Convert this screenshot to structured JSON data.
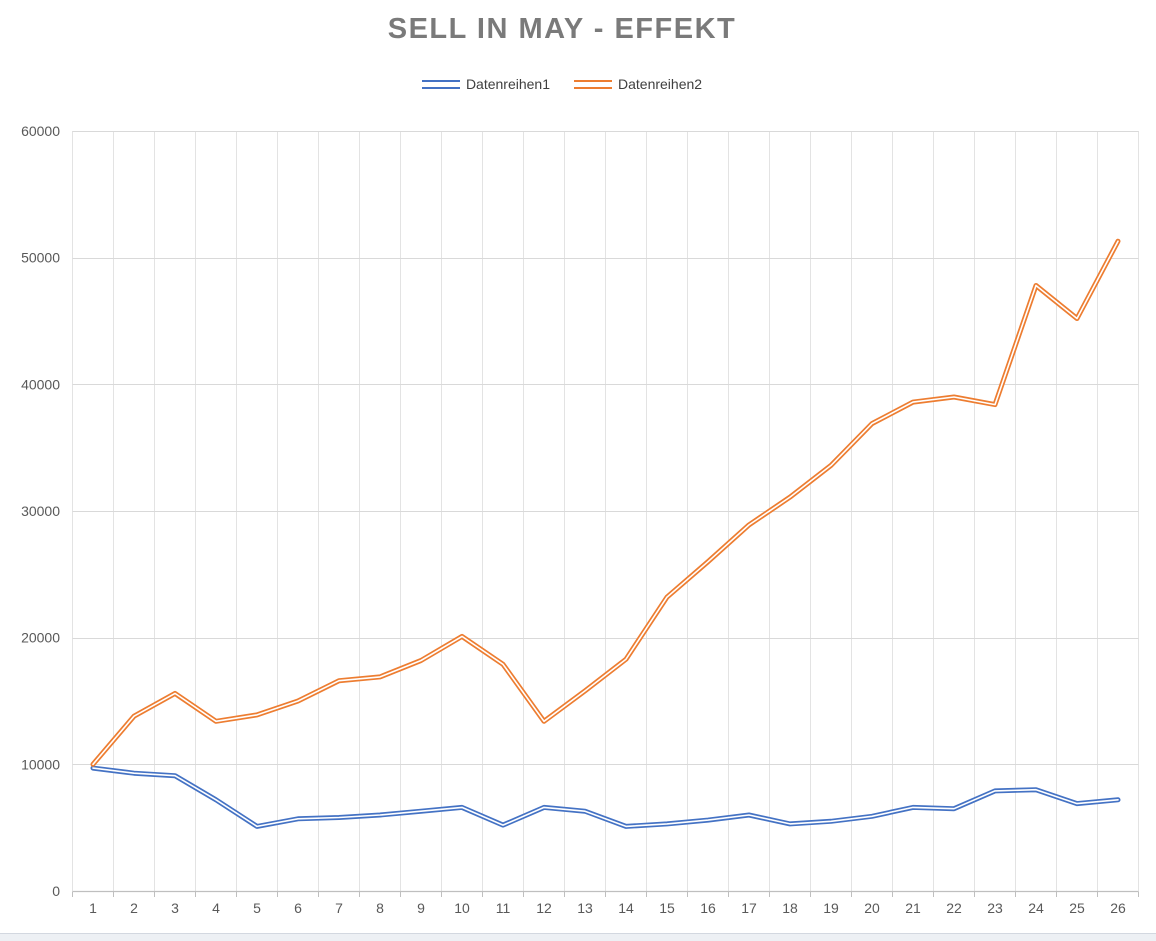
{
  "title": "SELL IN MAY - EFFEKT",
  "legend": [
    {
      "label": "Datenreihen1",
      "color": "#4472C4"
    },
    {
      "label": "Datenreihen2",
      "color": "#ED7D31"
    }
  ],
  "axis": {
    "ytick_labels": [
      "0",
      "10000",
      "20000",
      "30000",
      "40000",
      "50000",
      "60000"
    ],
    "xtick_labels": [
      "1",
      "2",
      "3",
      "4",
      "5",
      "6",
      "7",
      "8",
      "9",
      "10",
      "11",
      "12",
      "13",
      "14",
      "15",
      "16",
      "17",
      "18",
      "19",
      "20",
      "21",
      "22",
      "23",
      "24",
      "25",
      "26"
    ]
  },
  "chart_data": {
    "type": "line",
    "title": "SELL IN MAY - EFFEKT",
    "xlabel": "",
    "ylabel": "",
    "categories": [
      1,
      2,
      3,
      4,
      5,
      6,
      7,
      8,
      9,
      10,
      11,
      12,
      13,
      14,
      15,
      16,
      17,
      18,
      19,
      20,
      21,
      22,
      23,
      24,
      25,
      26
    ],
    "series": [
      {
        "name": "Datenreihen1",
        "color": "#4472C4",
        "values": [
          9700,
          9300,
          9100,
          7200,
          5100,
          5700,
          5800,
          6000,
          6300,
          6600,
          5200,
          6600,
          6300,
          5100,
          5300,
          5600,
          6000,
          5300,
          5500,
          5900,
          6600,
          6500,
          7900,
          8000,
          6900,
          7200
        ]
      },
      {
        "name": "Datenreihen2",
        "color": "#ED7D31",
        "values": [
          10000,
          13800,
          15600,
          13400,
          13900,
          15000,
          16600,
          16900,
          18200,
          20100,
          17900,
          13400,
          15800,
          18300,
          23200,
          26000,
          28900,
          31100,
          33600,
          36900,
          38600,
          39000,
          38400,
          47800,
          45200,
          51300
        ]
      }
    ],
    "ylim": [
      0,
      60000
    ],
    "yticks": [
      0,
      10000,
      20000,
      30000,
      40000,
      50000,
      60000
    ],
    "grid": true,
    "legend_position": "top",
    "line_style": "double-line (colored stroke with white center stripe)"
  },
  "colors": {
    "series1": "#4472C4",
    "series2": "#ED7D31",
    "title_text": "#7a7a7a",
    "axis_labels": "#595959",
    "gridline_horizontal": "#d9d9d9",
    "gridline_vertical": "#e3e3e3",
    "axis_line": "#bfbfbf"
  }
}
